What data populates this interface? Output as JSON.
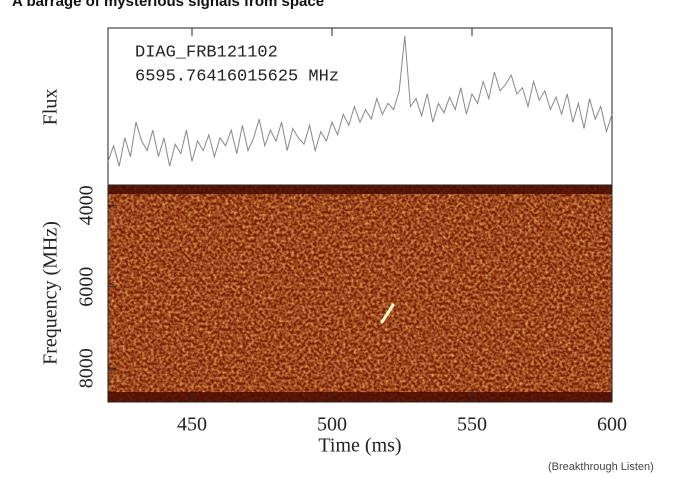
{
  "title": "A barrage of mysterious signals from space",
  "credit": "(Breakthrough Listen)",
  "chart_data": [
    {
      "type": "line",
      "y_label": "Flux",
      "annotations": [
        "DIAG_FRB121102",
        "6595.76416015625 MHz"
      ],
      "color": "#888888",
      "xlim": [
        420,
        600
      ],
      "ylim": [
        0,
        100
      ],
      "x": [
        420,
        422,
        424,
        426,
        428,
        430,
        432,
        434,
        436,
        438,
        440,
        442,
        444,
        446,
        448,
        450,
        452,
        454,
        456,
        458,
        460,
        462,
        464,
        466,
        468,
        470,
        472,
        474,
        476,
        478,
        480,
        482,
        484,
        486,
        488,
        490,
        492,
        494,
        496,
        498,
        500,
        502,
        504,
        506,
        508,
        510,
        512,
        514,
        516,
        518,
        520,
        522,
        524,
        526,
        528,
        530,
        532,
        534,
        536,
        538,
        540,
        542,
        544,
        546,
        548,
        550,
        552,
        554,
        556,
        558,
        560,
        562,
        564,
        566,
        568,
        570,
        572,
        574,
        576,
        578,
        580,
        582,
        584,
        586,
        588,
        590,
        592,
        594,
        596,
        598,
        600
      ],
      "values": [
        15,
        25,
        12,
        30,
        18,
        40,
        28,
        22,
        35,
        18,
        30,
        12,
        26,
        20,
        35,
        15,
        28,
        22,
        32,
        18,
        30,
        25,
        35,
        20,
        38,
        22,
        30,
        42,
        25,
        35,
        28,
        40,
        22,
        36,
        30,
        26,
        38,
        22,
        34,
        28,
        40,
        32,
        45,
        38,
        50,
        40,
        48,
        42,
        55,
        45,
        52,
        48,
        60,
        95,
        50,
        55,
        44,
        58,
        40,
        52,
        46,
        56,
        48,
        62,
        45,
        58,
        52,
        66,
        55,
        72,
        60,
        64,
        70,
        58,
        62,
        50,
        66,
        54,
        60,
        48,
        56,
        45,
        58,
        40,
        52,
        36,
        55,
        42,
        50,
        34,
        45
      ]
    },
    {
      "type": "heatmap",
      "x_label": "Time (ms)",
      "y_label": "Frequency (MHz)",
      "xlim": [
        420,
        600
      ],
      "xticks": [
        450,
        500,
        550,
        600
      ],
      "ylim": [
        8830,
        3500
      ],
      "yticks": [
        4000,
        6000,
        8000
      ]
    }
  ]
}
